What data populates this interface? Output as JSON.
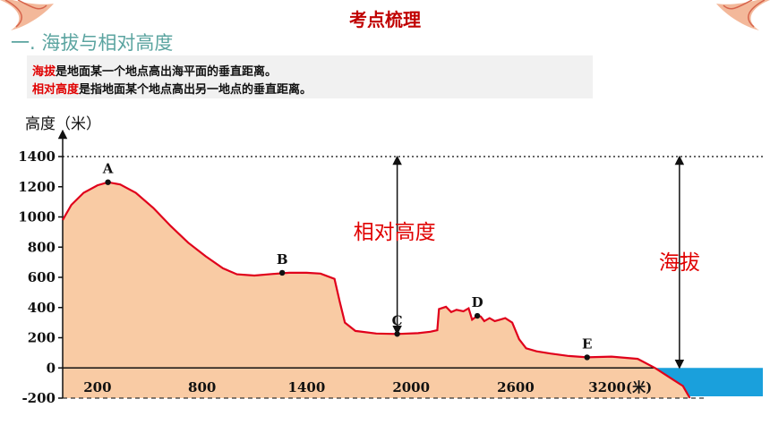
{
  "slide": {
    "title": "考点梳理",
    "section_heading": "一. 海拔与相对高度"
  },
  "definitions": [
    {
      "term": "海拔",
      "text": "是地面某一个地点高出海平面的垂直距离。"
    },
    {
      "term": "相对高度",
      "text": "是指地面某个地点高出另一地点的垂直距离。"
    }
  ],
  "colors": {
    "title": "#c00000",
    "heading": "#5ba4a0",
    "term": "#e00000",
    "land_fill": "#f9cba4",
    "profile_line": "#e0001b",
    "sea": "#1aa0dc",
    "annotation": "#e00000"
  },
  "chart_data": {
    "type": "area",
    "ylabel": "高度（米）",
    "xlabel": "(米)",
    "x_ticks": [
      200,
      800,
      1400,
      2000,
      2600,
      3200
    ],
    "x_tick_labels": [
      "200",
      "800",
      "1400",
      "2000",
      "2600",
      "3200(米)"
    ],
    "y_ticks": [
      -200,
      0,
      200,
      400,
      600,
      800,
      1000,
      1200,
      1400
    ],
    "xlim": [
      0,
      3700
    ],
    "ylim": [
      -200,
      1400
    ],
    "grid": false,
    "points": [
      {
        "label": "A",
        "x": 260,
        "y": 1230
      },
      {
        "label": "B",
        "x": 1260,
        "y": 630
      },
      {
        "label": "C",
        "x": 1920,
        "y": 225
      },
      {
        "label": "D",
        "x": 2380,
        "y": 345
      },
      {
        "label": "E",
        "x": 3010,
        "y": 70
      }
    ],
    "profile": [
      [
        0,
        980
      ],
      [
        50,
        1080
      ],
      [
        120,
        1160
      ],
      [
        200,
        1210
      ],
      [
        260,
        1230
      ],
      [
        330,
        1215
      ],
      [
        420,
        1160
      ],
      [
        520,
        1060
      ],
      [
        620,
        940
      ],
      [
        720,
        830
      ],
      [
        820,
        740
      ],
      [
        920,
        660
      ],
      [
        1000,
        620
      ],
      [
        1100,
        612
      ],
      [
        1200,
        622
      ],
      [
        1300,
        630
      ],
      [
        1400,
        630
      ],
      [
        1480,
        625
      ],
      [
        1560,
        590
      ],
      [
        1590,
        440
      ],
      [
        1620,
        300
      ],
      [
        1680,
        245
      ],
      [
        1800,
        228
      ],
      [
        1920,
        225
      ],
      [
        2040,
        230
      ],
      [
        2110,
        240
      ],
      [
        2150,
        250
      ],
      [
        2160,
        390
      ],
      [
        2200,
        405
      ],
      [
        2230,
        370
      ],
      [
        2260,
        385
      ],
      [
        2300,
        375
      ],
      [
        2330,
        395
      ],
      [
        2350,
        320
      ],
      [
        2380,
        345
      ],
      [
        2400,
        340
      ],
      [
        2420,
        310
      ],
      [
        2450,
        330
      ],
      [
        2480,
        310
      ],
      [
        2510,
        320
      ],
      [
        2540,
        330
      ],
      [
        2580,
        300
      ],
      [
        2620,
        190
      ],
      [
        2660,
        130
      ],
      [
        2720,
        110
      ],
      [
        2800,
        95
      ],
      [
        2900,
        80
      ],
      [
        3010,
        70
      ],
      [
        3150,
        75
      ],
      [
        3300,
        60
      ],
      [
        3400,
        0
      ],
      [
        3480,
        -60
      ],
      [
        3560,
        -120
      ],
      [
        3600,
        -200
      ]
    ],
    "sea_level": 0,
    "reference_level": 1400,
    "annotations": [
      {
        "text": "相对高度",
        "x": 1920,
        "from": 225,
        "to": 1400
      },
      {
        "text": "海拔",
        "x": 3540,
        "from": 0,
        "to": 1400
      }
    ]
  }
}
